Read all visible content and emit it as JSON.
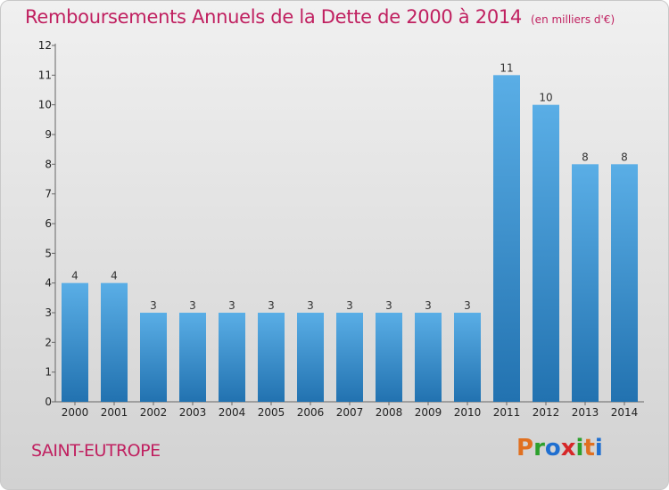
{
  "header": {
    "title": "Remboursements Annuels de la Dette de 2000 à 2014",
    "subtitle": "(en milliers d'€)"
  },
  "footer": {
    "place": "SAINT-EUTROPE",
    "logo_text": "Proxiti",
    "logo_colors": [
      "#e07020",
      "#2ca02c",
      "#1f6fd0",
      "#d62728",
      "#2ca02c",
      "#e07020",
      "#1f6fd0"
    ]
  },
  "colors": {
    "bar_top": "#5aaee6",
    "bar_bottom": "#2272b0",
    "title": "#c02060"
  },
  "chart_data": {
    "type": "bar",
    "title": "Remboursements Annuels de la Dette de 2000 à 2014",
    "xlabel": "",
    "ylabel": "(en milliers d'€)",
    "categories": [
      "2000",
      "2001",
      "2002",
      "2003",
      "2004",
      "2005",
      "2006",
      "2007",
      "2008",
      "2009",
      "2010",
      "2011",
      "2012",
      "2013",
      "2014"
    ],
    "values": [
      4,
      4,
      3,
      3,
      3,
      3,
      3,
      3,
      3,
      3,
      3,
      11,
      10,
      8,
      8
    ],
    "yticks": [
      "0",
      "1",
      "2",
      "3",
      "4",
      "5",
      "6",
      "7",
      "8",
      "9",
      "10",
      "11",
      "12"
    ],
    "ylim": [
      0,
      12
    ],
    "grid": false
  }
}
